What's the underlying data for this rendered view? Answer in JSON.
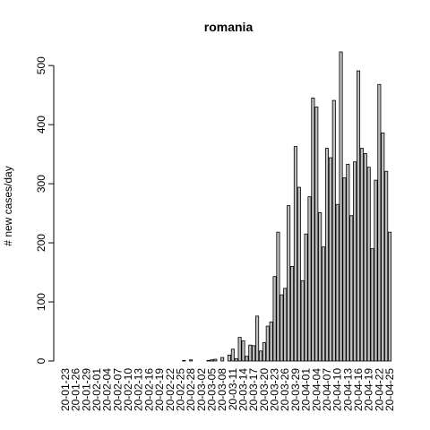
{
  "chart_data": {
    "type": "bar",
    "title": "romania",
    "y_label": "# new cases/day",
    "categories": [
      "20-01-23",
      null,
      null,
      "20-01-26",
      null,
      null,
      "20-01-29",
      null,
      null,
      "20-02-01",
      null,
      null,
      "20-02-04",
      null,
      null,
      "20-02-07",
      null,
      null,
      "20-02-10",
      null,
      null,
      "20-02-13",
      null,
      null,
      "20-02-16",
      null,
      null,
      "20-02-19",
      null,
      null,
      "20-02-22",
      null,
      null,
      "20-02-25",
      null,
      null,
      "20-02-28",
      null,
      null,
      "20-03-02",
      null,
      null,
      "20-03-05",
      null,
      null,
      "20-03-08",
      null,
      null,
      "20-03-11",
      null,
      null,
      "20-03-14",
      null,
      null,
      "20-03-17",
      null,
      null,
      "20-03-20",
      null,
      null,
      "20-03-23",
      null,
      null,
      "20-03-26",
      null,
      null,
      "20-03-29",
      null,
      null,
      "20-04-01",
      null,
      null,
      "20-04-04",
      null,
      null,
      "20-04-07",
      null,
      null,
      "20-04-10",
      null,
      null,
      "20-04-13",
      null,
      null,
      "20-04-16",
      null,
      null,
      "20-04-19",
      null,
      null,
      "20-04-22",
      null,
      null,
      "20-04-25"
    ],
    "values": [
      0,
      0,
      0,
      0,
      0,
      0,
      0,
      0,
      0,
      0,
      0,
      0,
      0,
      0,
      0,
      0,
      0,
      0,
      0,
      0,
      0,
      0,
      0,
      0,
      0,
      0,
      0,
      0,
      0,
      0,
      0,
      0,
      0,
      0,
      1,
      0,
      2,
      0,
      0,
      0,
      0,
      1,
      2,
      3,
      0,
      6,
      0,
      10,
      20,
      4,
      40,
      34,
      8,
      27,
      26,
      76,
      17,
      31,
      59,
      66,
      143,
      218,
      112,
      123,
      263,
      160,
      363,
      294,
      136,
      215,
      278,
      445,
      430,
      251,
      193,
      360,
      344,
      441,
      265,
      523,
      310,
      333,
      246,
      337,
      491,
      360,
      351,
      328,
      190,
      306,
      468,
      386,
      321,
      218
    ],
    "color": "#bebebe",
    "ylim": [
      0,
      523
    ],
    "yticks": [
      0,
      100,
      200,
      300,
      400,
      500
    ]
  }
}
